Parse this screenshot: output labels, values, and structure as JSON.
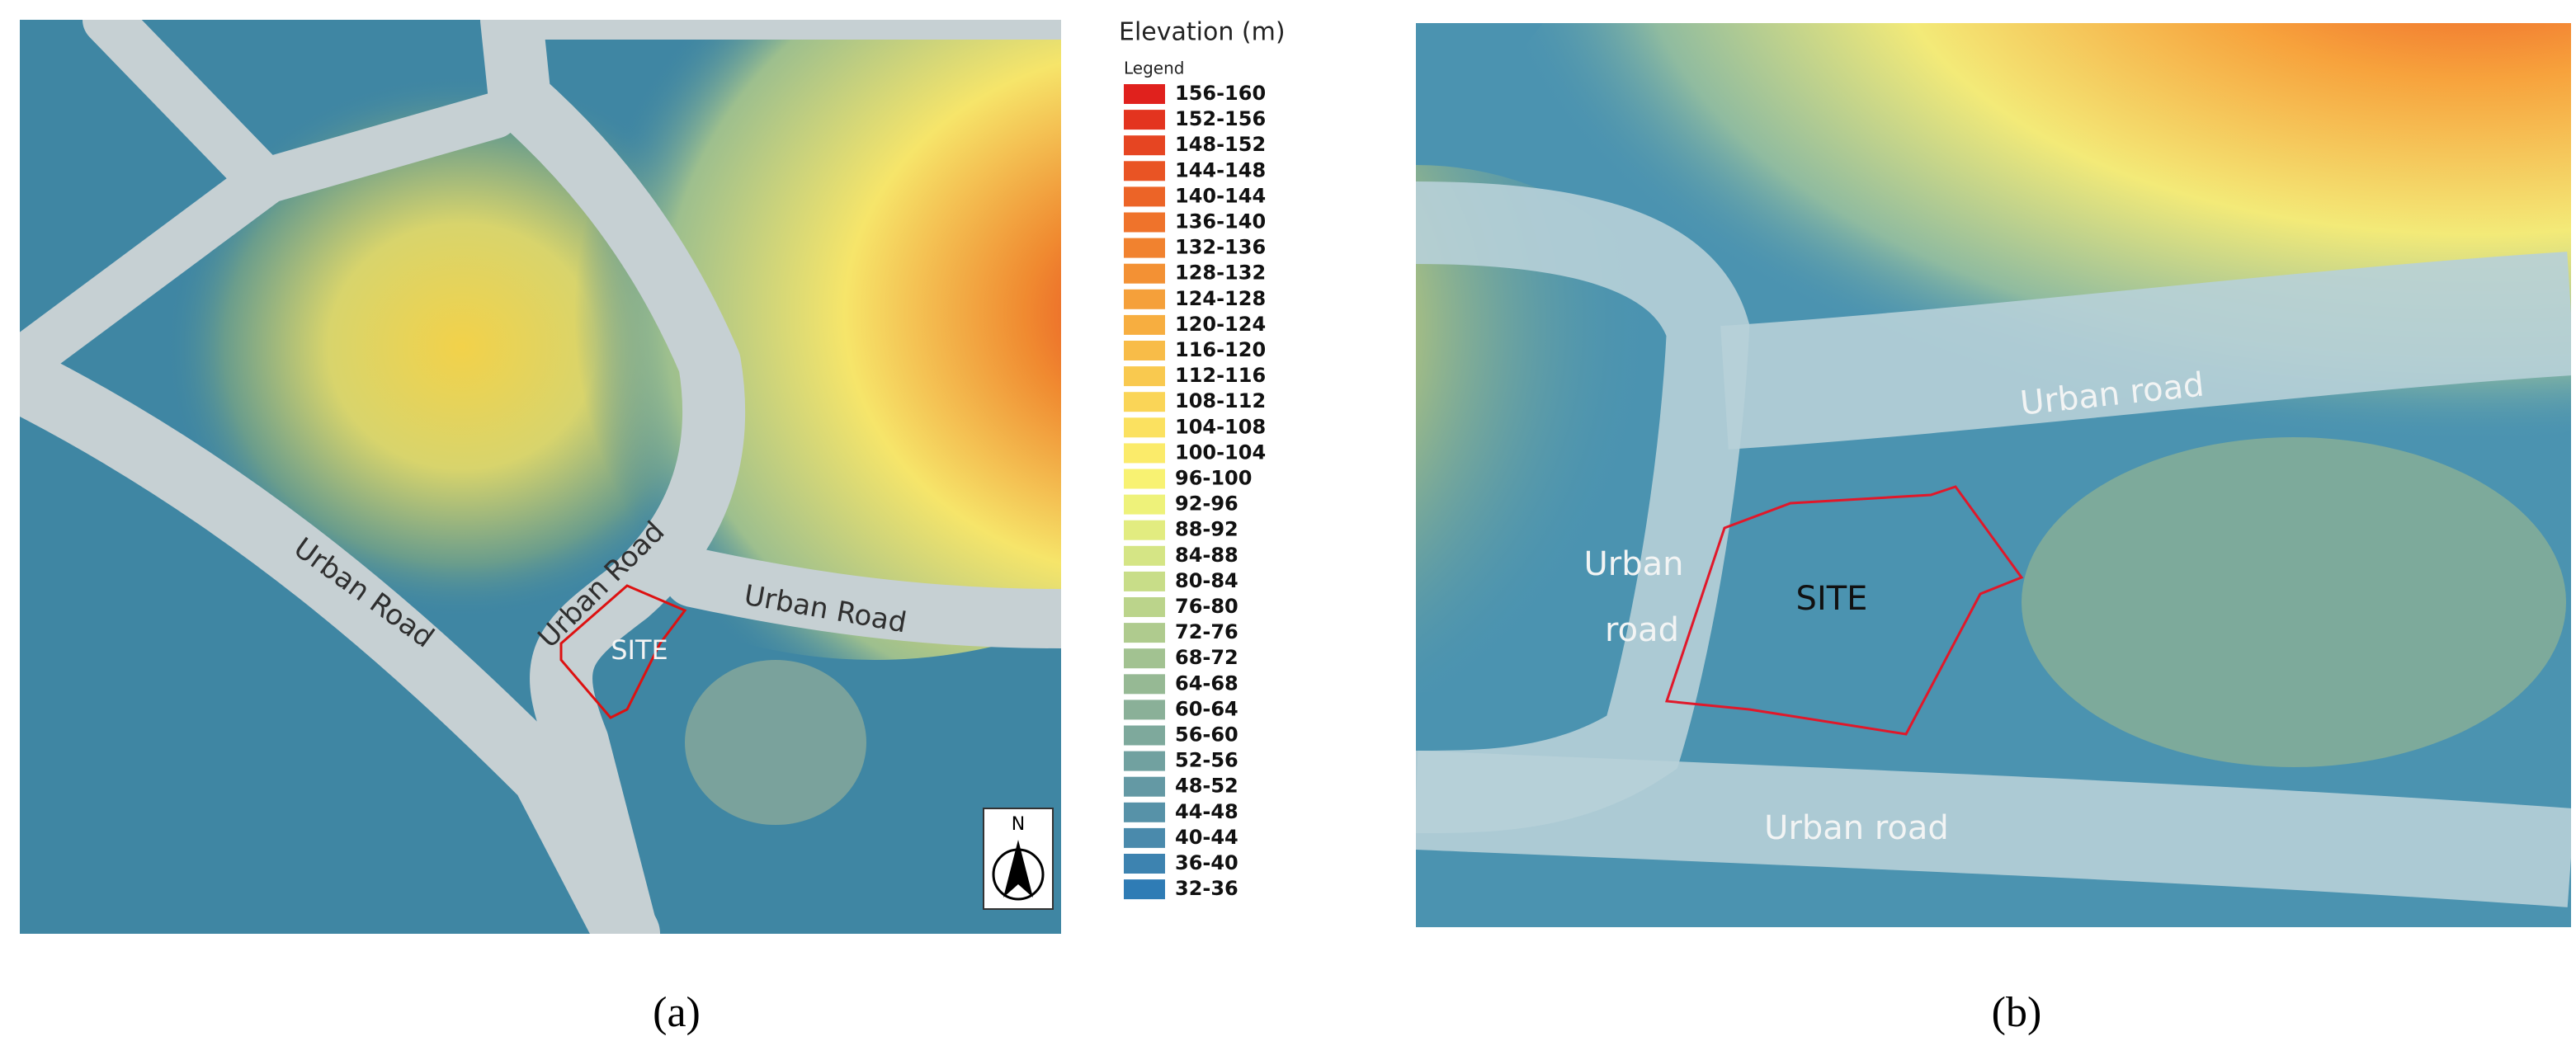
{
  "panel_a": {
    "legend": {
      "title": "Elevation (m)",
      "subtitle": "Legend",
      "items": [
        {
          "label": "156-160",
          "color": "#e0211d"
        },
        {
          "label": "152-156",
          "color": "#e3341f"
        },
        {
          "label": "148-152",
          "color": "#e64522"
        },
        {
          "label": "144-148",
          "color": "#e95424"
        },
        {
          "label": "140-144",
          "color": "#ec6427"
        },
        {
          "label": "136-140",
          "color": "#ef732b"
        },
        {
          "label": "132-136",
          "color": "#f1822f"
        },
        {
          "label": "128-132",
          "color": "#f39134"
        },
        {
          "label": "124-128",
          "color": "#f5a03a"
        },
        {
          "label": "120-124",
          "color": "#f7ae40"
        },
        {
          "label": "116-120",
          "color": "#f8bc48"
        },
        {
          "label": "112-116",
          "color": "#f9c94f"
        },
        {
          "label": "108-112",
          "color": "#fad557"
        },
        {
          "label": "104-108",
          "color": "#fbe160"
        },
        {
          "label": "100-104",
          "color": "#fbeb6a"
        },
        {
          "label": "96-100",
          "color": "#f8f272"
        },
        {
          "label": "92-96",
          "color": "#eef27a"
        },
        {
          "label": "88-92",
          "color": "#e2ec80"
        },
        {
          "label": "84-88",
          "color": "#d5e585"
        },
        {
          "label": "80-84",
          "color": "#c8dd88"
        },
        {
          "label": "76-80",
          "color": "#bbd48b"
        },
        {
          "label": "72-76",
          "color": "#afcb8e"
        },
        {
          "label": "68-72",
          "color": "#a2c291"
        },
        {
          "label": "64-68",
          "color": "#96b994"
        },
        {
          "label": "60-64",
          "color": "#8ab098"
        },
        {
          "label": "56-60",
          "color": "#7ea99c"
        },
        {
          "label": "52-56",
          "color": "#71a1a0"
        },
        {
          "label": "48-52",
          "color": "#6499a4"
        },
        {
          "label": "44-48",
          "color": "#5792a8"
        },
        {
          "label": "40-44",
          "color": "#4a8aac"
        },
        {
          "label": "36-40",
          "color": "#3d83b0"
        },
        {
          "label": "32-36",
          "color": "#2f7cb5"
        }
      ]
    },
    "road_labels": [
      "Urban Road",
      "Urban Road",
      "Urban Road"
    ],
    "site": "SITE",
    "north": "N",
    "caption": "(a)"
  },
  "panel_b": {
    "road_labels": [
      "Urban road",
      "Urban",
      "road",
      "Urban road"
    ],
    "site": "SITE",
    "caption": "(b)"
  }
}
